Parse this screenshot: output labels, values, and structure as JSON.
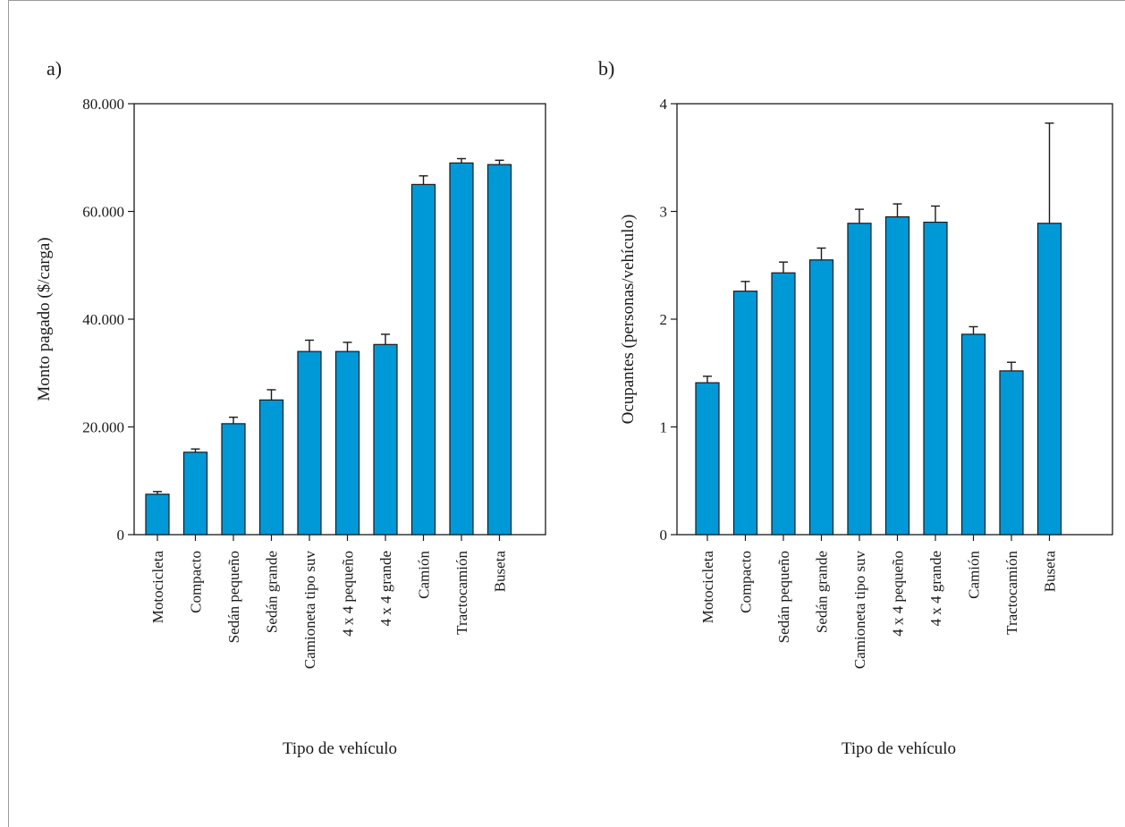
{
  "colors": {
    "bar": "#0099d8",
    "bar_stroke": "#1a1a1a",
    "axis": "#1a1a1a",
    "frame": "#9a9a9a"
  },
  "chart_data": [
    {
      "type": "bar",
      "panel_label": "a)",
      "title": "",
      "xlabel": "Tipo de vehículo",
      "ylabel": "Monto pagado ($/carga)",
      "ylim": [
        0,
        80000
      ],
      "yticks": [
        0,
        20000,
        40000,
        60000,
        80000
      ],
      "ytick_labels": [
        "0",
        "20.000",
        "40.000",
        "60.000",
        "80.000"
      ],
      "grid": false,
      "error_bars": true,
      "categories": [
        "Motocicleta",
        "Compacto",
        "Sedán pequeño",
        "Sedán grande",
        "Camioneta tipo suv",
        "4 x 4 pequeño",
        "4 x 4 grande",
        "Camión",
        "Tractocamión",
        "Buseta"
      ],
      "values": [
        7500,
        15300,
        20600,
        25000,
        34000,
        34000,
        35300,
        65000,
        69000,
        68700
      ],
      "errors": [
        500,
        600,
        1200,
        1900,
        2100,
        1700,
        1900,
        1600,
        800,
        800
      ]
    },
    {
      "type": "bar",
      "panel_label": "b)",
      "title": "",
      "xlabel": "Tipo de vehículo",
      "ylabel": "Ocupantes (personas/vehículo)",
      "ylim": [
        0,
        4
      ],
      "yticks": [
        0,
        1,
        2,
        3,
        4
      ],
      "ytick_labels": [
        "0",
        "1",
        "2",
        "3",
        "4"
      ],
      "grid": false,
      "error_bars": true,
      "categories": [
        "Motocicleta",
        "Compacto",
        "Sedán pequeño",
        "Sedán grande",
        "Camioneta tipo suv",
        "4 x 4 pequeño",
        "4 x 4 grande",
        "Camión",
        "Tractocamión",
        "Buseta"
      ],
      "values": [
        1.41,
        2.26,
        2.43,
        2.55,
        2.89,
        2.95,
        2.9,
        1.86,
        1.52,
        2.89
      ],
      "errors": [
        0.06,
        0.09,
        0.1,
        0.11,
        0.13,
        0.12,
        0.15,
        0.07,
        0.08,
        0.93
      ]
    }
  ]
}
